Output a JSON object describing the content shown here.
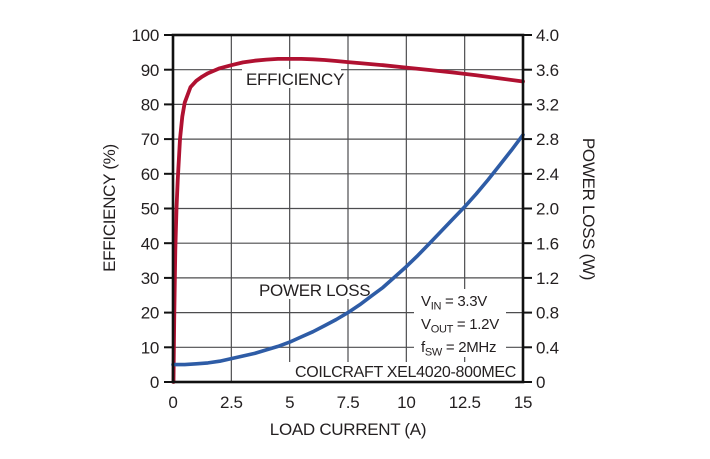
{
  "chart_data": {
    "type": "line",
    "title": "",
    "xlabel": "LOAD CURRENT (A)",
    "xlim": [
      0,
      15
    ],
    "x_tick_values": [
      0,
      2.5,
      5,
      7.5,
      10,
      12.5,
      15
    ],
    "x_tick_labels": [
      "0",
      "2.5",
      "5",
      "7.5",
      "10",
      "12.5",
      "15"
    ],
    "left_axis": {
      "label": "EFFICIENCY (%)",
      "lim": [
        0,
        100
      ],
      "tick_values": [
        0,
        10,
        20,
        30,
        40,
        50,
        60,
        70,
        80,
        90,
        100
      ],
      "tick_labels": [
        "0",
        "10",
        "20",
        "30",
        "40",
        "50",
        "60",
        "70",
        "80",
        "90",
        "100"
      ]
    },
    "right_axis": {
      "label": "POWER LOSS (W)",
      "lim": [
        0,
        4
      ],
      "tick_values": [
        0,
        0.4,
        0.8,
        1.2,
        1.6,
        2.0,
        2.4,
        2.8,
        3.2,
        3.6,
        4.0
      ],
      "tick_labels": [
        "0",
        "0.4",
        "0.8",
        "1.2",
        "1.6",
        "2.0",
        "2.4",
        "2.8",
        "3.2",
        "3.6",
        "4.0"
      ]
    },
    "grid": true,
    "legend_position": "in-plot-labels",
    "series": [
      {
        "name": "EFFICIENCY",
        "axis": "left",
        "color": "#b01131",
        "x": [
          0.02,
          0.05,
          0.1,
          0.15,
          0.2,
          0.3,
          0.4,
          0.5,
          0.75,
          1.0,
          1.25,
          1.5,
          2.0,
          2.5,
          3.0,
          3.5,
          4.0,
          4.5,
          5.0,
          5.5,
          6.0,
          6.5,
          7.0,
          7.5,
          8.0,
          9.0,
          10.0,
          11.0,
          12.0,
          12.5,
          13.0,
          14.0,
          15.0
        ],
        "y": [
          0,
          18,
          38,
          50,
          58,
          70,
          76.5,
          80.5,
          85,
          86.8,
          88,
          89,
          90.4,
          91.3,
          92.1,
          92.6,
          92.9,
          93.1,
          93.1,
          93.1,
          93.0,
          92.8,
          92.5,
          92.2,
          91.9,
          91.3,
          90.6,
          89.9,
          89.2,
          88.8,
          88.4,
          87.5,
          86.6
        ]
      },
      {
        "name": "POWER LOSS",
        "axis": "right",
        "color": "#2e5ca6",
        "x": [
          0,
          0.5,
          1.0,
          1.5,
          2.0,
          2.5,
          3.0,
          3.5,
          4.0,
          4.5,
          5.0,
          5.5,
          6.0,
          6.5,
          7.0,
          7.5,
          8.0,
          8.5,
          9.0,
          9.5,
          10.0,
          10.5,
          11.0,
          11.5,
          12.0,
          12.5,
          13.0,
          13.5,
          14.0,
          14.5,
          15.0
        ],
        "y": [
          0.2,
          0.2,
          0.21,
          0.22,
          0.24,
          0.27,
          0.3,
          0.33,
          0.37,
          0.41,
          0.46,
          0.52,
          0.58,
          0.65,
          0.72,
          0.8,
          0.89,
          0.99,
          1.09,
          1.21,
          1.33,
          1.46,
          1.6,
          1.74,
          1.88,
          2.02,
          2.17,
          2.33,
          2.5,
          2.67,
          2.85
        ]
      }
    ],
    "annotations": {
      "conditions": [
        {
          "base": "V",
          "sub": "IN",
          "rest": " = 3.3V"
        },
        {
          "base": "V",
          "sub": "OUT",
          "rest": " = 1.2V"
        },
        {
          "base": "f",
          "sub": "SW",
          "rest": " = 2MHz"
        }
      ],
      "footer": "COILCRAFT XEL4020-800MEC"
    },
    "colors": {
      "grid": "#4d4d4f",
      "border": "#111111",
      "text": "#231f20",
      "background": "#ffffff"
    }
  }
}
